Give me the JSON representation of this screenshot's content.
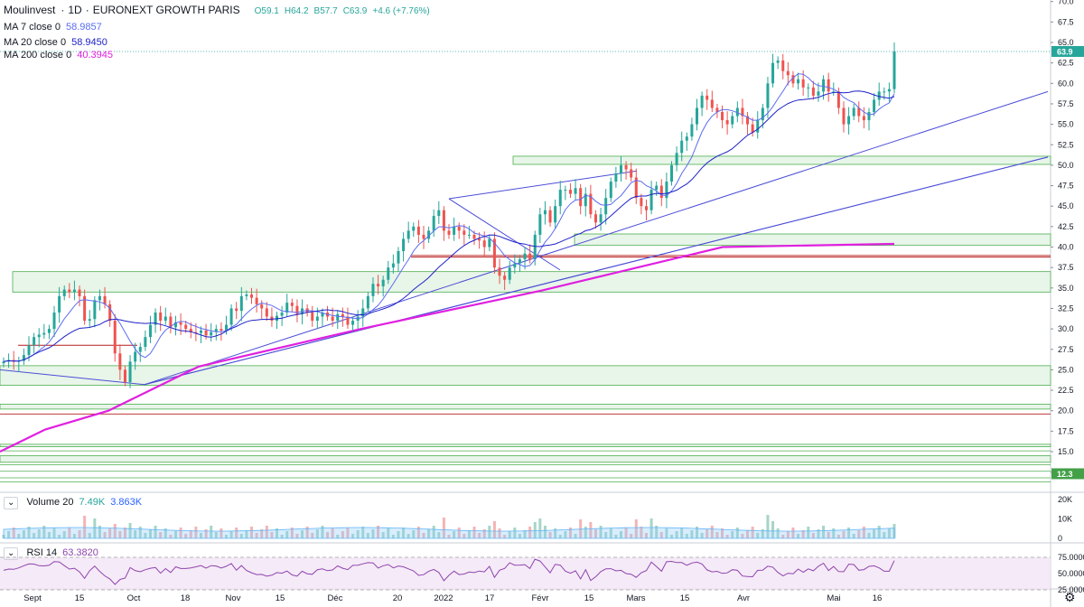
{
  "header": {
    "symbol": "Moulinvest",
    "interval": "1D",
    "exchange": "EURONEXT GROWTH PARIS",
    "title_sep": "·",
    "ohlc": {
      "o": "O59.1",
      "h": "H64.2",
      "l": "B57.7",
      "c": "C63.9",
      "chg": "+4.6 (+7.76%)"
    }
  },
  "indicators": {
    "ma7": {
      "label": "MA 7 close 0",
      "value": "58.9857",
      "color": "#5b6cf0"
    },
    "ma20": {
      "label": "MA 20 close 0",
      "value": "58.9450",
      "color": "#1e22c8"
    },
    "ma200": {
      "label": "MA 200 close 0",
      "value": "40.3945",
      "color": "#e020e0"
    },
    "volume": {
      "label": "Volume 20",
      "v1": "7.49K",
      "v2": "3.863K"
    },
    "rsi": {
      "label": "RSI 14",
      "value": "63.3820",
      "color": "#8e44ad"
    }
  },
  "price_axis": {
    "ticks": [
      "70.0",
      "67.5",
      "65.0",
      "62.5",
      "60.0",
      "57.5",
      "55.0",
      "52.5",
      "50.0",
      "47.5",
      "45.0",
      "42.5",
      "40.0",
      "37.5",
      "35.0",
      "32.5",
      "30.0",
      "27.5",
      "25.0",
      "22.5",
      "20.0",
      "17.5",
      "15.0",
      "12.5"
    ],
    "last_price_label": "63.9",
    "level_label": "12.3"
  },
  "volume_axis": {
    "ticks": [
      "20K",
      "10K",
      "0"
    ]
  },
  "rsi_axis": {
    "ticks": [
      "75.0000",
      "50.0000",
      "25.0000"
    ]
  },
  "time_axis": {
    "labels": [
      "Sept",
      "15",
      "Oct",
      "18",
      "Nov",
      "15",
      "Déc",
      "20",
      "2022",
      "17",
      "Févr",
      "15",
      "Mars",
      "15",
      "Avr",
      "Mai",
      "16"
    ]
  },
  "colors": {
    "up": "#26a69a",
    "down": "#ef5350",
    "zone_fill": "#e8f5e9",
    "zone_border": "#4caf50",
    "trend": "#4b4ed6",
    "red_level": "#b71c1c"
  },
  "chart_data": {
    "type": "candlestick",
    "title": "Moulinvest · 1D · EURONEXT GROWTH PARIS",
    "ylim": [
      11,
      70.5
    ],
    "scale": "linear",
    "grid": false,
    "x": [
      "2021-09-01",
      "2021-09-02",
      "2021-09-03",
      "2021-09-06",
      "2021-09-07",
      "2021-09-08",
      "2021-09-09",
      "2021-09-10",
      "2021-09-13",
      "2021-09-14",
      "2021-09-15",
      "2021-09-16",
      "2021-09-17",
      "2021-09-20",
      "2021-09-21",
      "2021-09-22",
      "2021-09-23",
      "2021-09-24",
      "2021-09-27",
      "2021-09-28",
      "2021-09-29",
      "2021-09-30",
      "2021-10-01",
      "2021-10-04",
      "2021-10-05",
      "2021-10-06",
      "2021-10-07",
      "2021-10-08",
      "2021-10-11",
      "2021-10-12",
      "2021-10-13",
      "2021-10-14",
      "2021-10-15",
      "2021-10-18",
      "2021-10-19",
      "2021-10-20",
      "2021-10-21",
      "2021-10-22",
      "2021-10-25",
      "2021-10-26",
      "2021-10-27",
      "2021-10-28",
      "2021-10-29",
      "2021-11-01",
      "2021-11-02",
      "2021-11-03",
      "2021-11-04",
      "2021-11-05",
      "2021-11-08",
      "2021-11-09",
      "2021-11-10",
      "2021-11-11",
      "2021-11-12",
      "2021-11-15",
      "2021-11-16",
      "2021-11-17",
      "2021-11-18",
      "2021-11-19",
      "2021-11-22",
      "2021-11-23",
      "2021-11-24",
      "2021-11-25",
      "2021-11-26",
      "2021-11-29",
      "2021-11-30",
      "2021-12-01",
      "2021-12-02",
      "2021-12-03",
      "2021-12-06",
      "2021-12-07",
      "2021-12-08",
      "2021-12-09",
      "2021-12-10",
      "2021-12-13",
      "2021-12-14",
      "2021-12-15",
      "2021-12-16",
      "2021-12-17",
      "2021-12-20",
      "2021-12-21",
      "2021-12-22",
      "2021-12-23",
      "2021-12-27",
      "2021-12-28",
      "2021-12-29",
      "2021-12-30",
      "2021-12-31",
      "2022-01-03",
      "2022-01-04",
      "2022-01-05",
      "2022-01-06",
      "2022-01-07",
      "2022-01-10",
      "2022-01-11",
      "2022-01-12",
      "2022-01-13",
      "2022-01-14",
      "2022-01-17",
      "2022-01-18",
      "2022-01-19",
      "2022-01-20",
      "2022-01-21",
      "2022-01-24",
      "2022-01-25",
      "2022-01-26",
      "2022-01-27",
      "2022-01-28",
      "2022-01-31",
      "2022-02-01",
      "2022-02-02",
      "2022-02-03",
      "2022-02-04",
      "2022-02-07",
      "2022-02-08",
      "2022-02-09",
      "2022-02-10",
      "2022-02-11",
      "2022-02-14",
      "2022-02-15",
      "2022-02-16",
      "2022-02-17",
      "2022-02-18",
      "2022-02-21",
      "2022-02-22",
      "2022-02-23",
      "2022-02-24",
      "2022-02-25",
      "2022-02-28",
      "2022-03-01",
      "2022-03-02",
      "2022-03-03",
      "2022-03-04",
      "2022-03-07",
      "2022-03-08",
      "2022-03-09",
      "2022-03-10",
      "2022-03-11",
      "2022-03-14",
      "2022-03-15",
      "2022-03-16",
      "2022-03-17",
      "2022-03-18",
      "2022-03-21",
      "2022-03-22",
      "2022-03-23",
      "2022-03-24",
      "2022-03-25",
      "2022-03-28",
      "2022-03-29",
      "2022-03-30",
      "2022-03-31",
      "2022-04-01",
      "2022-04-04",
      "2022-04-05",
      "2022-04-06",
      "2022-04-07",
      "2022-04-08",
      "2022-04-11",
      "2022-04-12",
      "2022-04-13",
      "2022-04-14",
      "2022-04-18",
      "2022-04-19",
      "2022-04-20",
      "2022-04-21",
      "2022-04-22",
      "2022-04-25",
      "2022-04-26",
      "2022-04-27",
      "2022-04-28",
      "2022-04-29",
      "2022-05-02",
      "2022-05-03",
      "2022-05-04",
      "2022-05-05",
      "2022-05-06",
      "2022-05-09",
      "2022-05-10",
      "2022-05-11",
      "2022-05-12",
      "2022-05-13",
      "2022-05-16",
      "2022-05-17",
      "2022-05-18",
      "2022-05-19"
    ],
    "closes": [
      26.0,
      26.2,
      26.0,
      26.1,
      26.8,
      28.0,
      29.0,
      29.3,
      29.5,
      30.0,
      32.0,
      34.0,
      34.8,
      34.5,
      34.8,
      34.0,
      31.0,
      31.2,
      33.5,
      34.0,
      33.0,
      31.0,
      27.0,
      25.0,
      23.5,
      26.0,
      27.2,
      27.8,
      29.0,
      30.5,
      32.0,
      31.0,
      31.5,
      30.2,
      30.8,
      30.5,
      30.0,
      29.6,
      29.5,
      29.8,
      29.2,
      29.6,
      30.0,
      29.8,
      30.5,
      32.5,
      32.2,
      34.0,
      34.2,
      33.8,
      33.0,
      32.5,
      31.5,
      31.0,
      31.6,
      32.0,
      33.2,
      32.8,
      31.8,
      32.5,
      32.0,
      31.0,
      31.5,
      32.0,
      31.5,
      31.0,
      31.8,
      31.5,
      30.5,
      31.0,
      31.5,
      32.5,
      34.0,
      35.5,
      35.2,
      36.0,
      37.5,
      38.0,
      39.5,
      41.0,
      42.0,
      42.5,
      41.5,
      41.0,
      42.0,
      43.8,
      44.5,
      42.0,
      41.5,
      42.5,
      42.0,
      41.5,
      41.5,
      41.0,
      40.8,
      40.0,
      41.0,
      37.5,
      36.5,
      36.0,
      37.5,
      38.0,
      38.5,
      39.2,
      38.5,
      41.5,
      44.0,
      44.5,
      43.0,
      45.0,
      47.0,
      47.0,
      46.5,
      47.2,
      45.0,
      46.5,
      44.0,
      43.0,
      44.0,
      46.0,
      48.0,
      49.0,
      50.0,
      49.5,
      48.5,
      46.0,
      45.0,
      44.5,
      47.0,
      47.5,
      46.0,
      48.0,
      50.0,
      51.5,
      53.0,
      53.5,
      55.0,
      57.0,
      58.5,
      58.0,
      57.0,
      56.5,
      55.5,
      55.0,
      56.0,
      57.0,
      56.0,
      55.0,
      54.0,
      55.5,
      57.0,
      60.0,
      62.5,
      62.8,
      61.5,
      61.0,
      60.0,
      60.5,
      59.5,
      59.5,
      58.5,
      59.0,
      60.5,
      59.0,
      59.0,
      57.0,
      55.0,
      56.0,
      57.0,
      56.0,
      55.5,
      56.5,
      58.0,
      59.0,
      59.0,
      59.3,
      63.9
    ],
    "ma200_points": [
      [
        0,
        15.0
      ],
      [
        50,
        17.7
      ],
      [
        120,
        20.0
      ],
      [
        220,
        25.4
      ],
      [
        400,
        30.0
      ],
      [
        600,
        34.7
      ],
      [
        800,
        40.0
      ],
      [
        990,
        40.39
      ]
    ],
    "support_zones": [
      [
        34.5,
        37.0
      ],
      [
        23.1,
        25.5
      ],
      [
        50.1,
        51.1
      ],
      [
        40.2,
        41.6
      ],
      [
        20.2,
        20.8
      ],
      [
        15.6,
        15.9
      ],
      [
        13.7,
        14.5
      ]
    ],
    "series": [
      {
        "name": "MA 7 close 0",
        "last": 58.9857
      },
      {
        "name": "MA 20 close 0",
        "last": 58.945
      },
      {
        "name": "MA 200 close 0",
        "last": 40.3945
      },
      {
        "name": "Volume 20",
        "last": 7490
      },
      {
        "name": "RSI 14",
        "last": 63.382
      }
    ],
    "rsi_range": [
      25,
      75
    ]
  }
}
